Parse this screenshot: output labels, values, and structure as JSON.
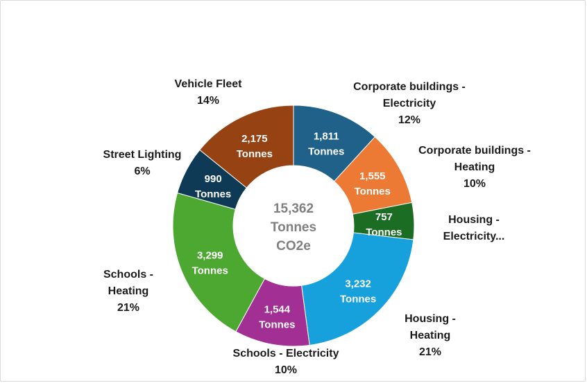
{
  "chart_data": {
    "type": "donut",
    "center_label": [
      "15,362",
      "Tonnes",
      "CO2e"
    ],
    "unit_label": "Tonnes",
    "segments": [
      {
        "name_lines": [
          "Corporate buildings -",
          "Electricity"
        ],
        "value": 1811,
        "value_label": "1,811",
        "percent_label": "12%",
        "color": "#1f6189"
      },
      {
        "name_lines": [
          "Corporate buildings -",
          "Heating"
        ],
        "value": 1555,
        "value_label": "1,555",
        "percent_label": "10%",
        "color": "#ec7a35"
      },
      {
        "name_lines": [
          "Housing -",
          "Electricity..."
        ],
        "value": 757,
        "value_label": "757",
        "percent_label": "",
        "color": "#1b6d24"
      },
      {
        "name_lines": [
          "Housing -",
          "Heating"
        ],
        "value": 3232,
        "value_label": "3,232",
        "percent_label": "21%",
        "color": "#16a1dd"
      },
      {
        "name_lines": [
          "Schools - Electricity"
        ],
        "value": 1544,
        "value_label": "1,544",
        "percent_label": "10%",
        "color": "#a22f94"
      },
      {
        "name_lines": [
          "Schools -",
          "Heating"
        ],
        "value": 3299,
        "value_label": "3,299",
        "percent_label": "21%",
        "color": "#4da832"
      },
      {
        "name_lines": [
          "Street Lighting"
        ],
        "value": 990,
        "value_label": "990",
        "percent_label": "6%",
        "color": "#0f3a56"
      },
      {
        "name_lines": [
          "Vehicle Fleet"
        ],
        "value": 2175,
        "value_label": "2,175",
        "percent_label": "14%",
        "color": "#974213"
      }
    ]
  }
}
